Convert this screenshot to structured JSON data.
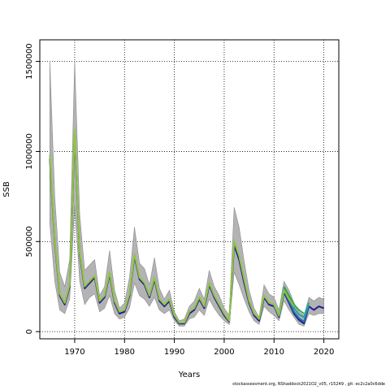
{
  "chart_data": {
    "type": "line",
    "xlabel": "Years",
    "ylabel": "SSB",
    "xlim": [
      1963,
      2023
    ],
    "ylim": [
      -40000,
      1620000
    ],
    "x_ticks": [
      "1970",
      "1980",
      "1990",
      "2000",
      "2010",
      "2020"
    ],
    "y_ticks": [
      "0",
      "500000",
      "1000000",
      "1500000"
    ],
    "grid": "dotted",
    "legend": "none",
    "band": {
      "x": [
        1965,
        1966,
        1967,
        1968,
        1969,
        1970,
        1971,
        1972,
        1973,
        1974,
        1975,
        1976,
        1977,
        1978,
        1979,
        1980,
        1981,
        1982,
        1983,
        1984,
        1985,
        1986,
        1987,
        1988,
        1989,
        1990,
        1991,
        1992,
        1993,
        1994,
        1995,
        1996,
        1997,
        1998,
        1999,
        2000,
        2001,
        2002,
        2003,
        2004,
        2005,
        2006,
        2007,
        2008,
        2009,
        2010,
        2011,
        2012,
        2013,
        2014,
        2015,
        2016,
        2017,
        2018,
        2019,
        2020
      ],
      "lower": [
        600000,
        280000,
        120000,
        100000,
        180000,
        700000,
        280000,
        150000,
        190000,
        210000,
        110000,
        130000,
        200000,
        100000,
        70000,
        80000,
        130000,
        270000,
        200000,
        180000,
        140000,
        190000,
        120000,
        100000,
        120000,
        60000,
        30000,
        30000,
        70000,
        80000,
        120000,
        90000,
        180000,
        130000,
        90000,
        60000,
        40000,
        330000,
        260000,
        180000,
        110000,
        60000,
        40000,
        140000,
        110000,
        90000,
        60000,
        170000,
        120000,
        80000,
        40000,
        30000,
        100000,
        90000,
        100000,
        100000
      ],
      "upper": [
        1500000,
        750000,
        330000,
        250000,
        400000,
        1500000,
        650000,
        340000,
        370000,
        400000,
        200000,
        250000,
        450000,
        230000,
        130000,
        160000,
        300000,
        580000,
        380000,
        350000,
        260000,
        410000,
        240000,
        180000,
        230000,
        110000,
        60000,
        70000,
        140000,
        170000,
        240000,
        180000,
        340000,
        250000,
        200000,
        130000,
        90000,
        690000,
        580000,
        390000,
        230000,
        130000,
        80000,
        260000,
        210000,
        190000,
        120000,
        280000,
        230000,
        160000,
        110000,
        90000,
        190000,
        170000,
        190000,
        180000
      ]
    },
    "series": [
      {
        "color": "#1f1f8f",
        "x": [
          1965,
          1966,
          1967,
          1968,
          1969,
          1970,
          1971,
          1972,
          1973,
          1974,
          1975,
          1976,
          1977,
          1978,
          1979,
          1980,
          1981,
          1982,
          1983,
          1984,
          1985,
          1986,
          1987,
          1988,
          1989,
          1990,
          1991,
          1992,
          1993,
          1994,
          1995,
          1996,
          1997,
          1998,
          1999,
          2000,
          2001,
          2002,
          2003,
          2004,
          2005,
          2006,
          2007,
          2008,
          2009,
          2010,
          2011,
          2012,
          2013,
          2014,
          2015,
          2016,
          2017,
          2018,
          2019,
          2020
        ],
        "values": [
          960000,
          500000,
          200000,
          150000,
          250000,
          1100000,
          430000,
          240000,
          270000,
          300000,
          160000,
          190000,
          320000,
          160000,
          100000,
          110000,
          200000,
          420000,
          290000,
          260000,
          190000,
          290000,
          170000,
          140000,
          170000,
          80000,
          45000,
          45000,
          100000,
          120000,
          180000,
          130000,
          260000,
          190000,
          140000,
          90000,
          55000,
          480000,
          400000,
          270000,
          160000,
          90000,
          60000,
          190000,
          150000,
          140000,
          80000,
          220000,
          160000,
          100000,
          65000,
          45000,
          140000,
          120000,
          140000,
          130000
        ]
      },
      {
        "color": "#2b6fb0",
        "x": [
          2010,
          2011,
          2012,
          2013,
          2014,
          2015,
          2016,
          2017
        ],
        "values": [
          140000,
          85000,
          230000,
          170000,
          110000,
          75000,
          55000,
          145000
        ]
      },
      {
        "color": "#20a8a0",
        "x": [
          2011,
          2012,
          2013,
          2014,
          2015,
          2016,
          2017
        ],
        "values": [
          90000,
          240000,
          190000,
          130000,
          95000,
          80000,
          160000
        ]
      },
      {
        "color": "#3aa24a",
        "x": [
          2012,
          2013,
          2014,
          2015,
          2016
        ],
        "values": [
          250000,
          200000,
          150000,
          120000,
          100000
        ]
      },
      {
        "color": "#8ec63f",
        "x": [
          1965,
          1966,
          1967,
          1968,
          1969,
          1970,
          1971,
          1972,
          1973,
          1974,
          1975,
          1976,
          1977,
          1978,
          1979,
          1980,
          1981,
          1982,
          1983,
          1984,
          1985,
          1986,
          1987,
          1988,
          1989,
          1990,
          1991,
          1992,
          1993,
          1994,
          1995,
          1996,
          1997,
          1998,
          1999,
          2000,
          2001,
          2002,
          2003,
          2004,
          2005,
          2006,
          2007,
          2008,
          2009,
          2010,
          2011,
          2012,
          2013,
          2014
        ],
        "values": [
          980000,
          510000,
          210000,
          160000,
          260000,
          1120000,
          440000,
          250000,
          280000,
          310000,
          170000,
          200000,
          330000,
          170000,
          110000,
          120000,
          210000,
          430000,
          300000,
          270000,
          200000,
          300000,
          180000,
          150000,
          180000,
          90000,
          50000,
          50000,
          110000,
          130000,
          190000,
          140000,
          270000,
          200000,
          150000,
          100000,
          60000,
          500000,
          420000,
          290000,
          170000,
          100000,
          70000,
          200000,
          160000,
          150000,
          90000,
          230000,
          180000,
          140000
        ]
      }
    ]
  },
  "footer": "stockassessment.org, NShaddock2021O2_v05, r15249 , git: ec2c2a0c6dde"
}
